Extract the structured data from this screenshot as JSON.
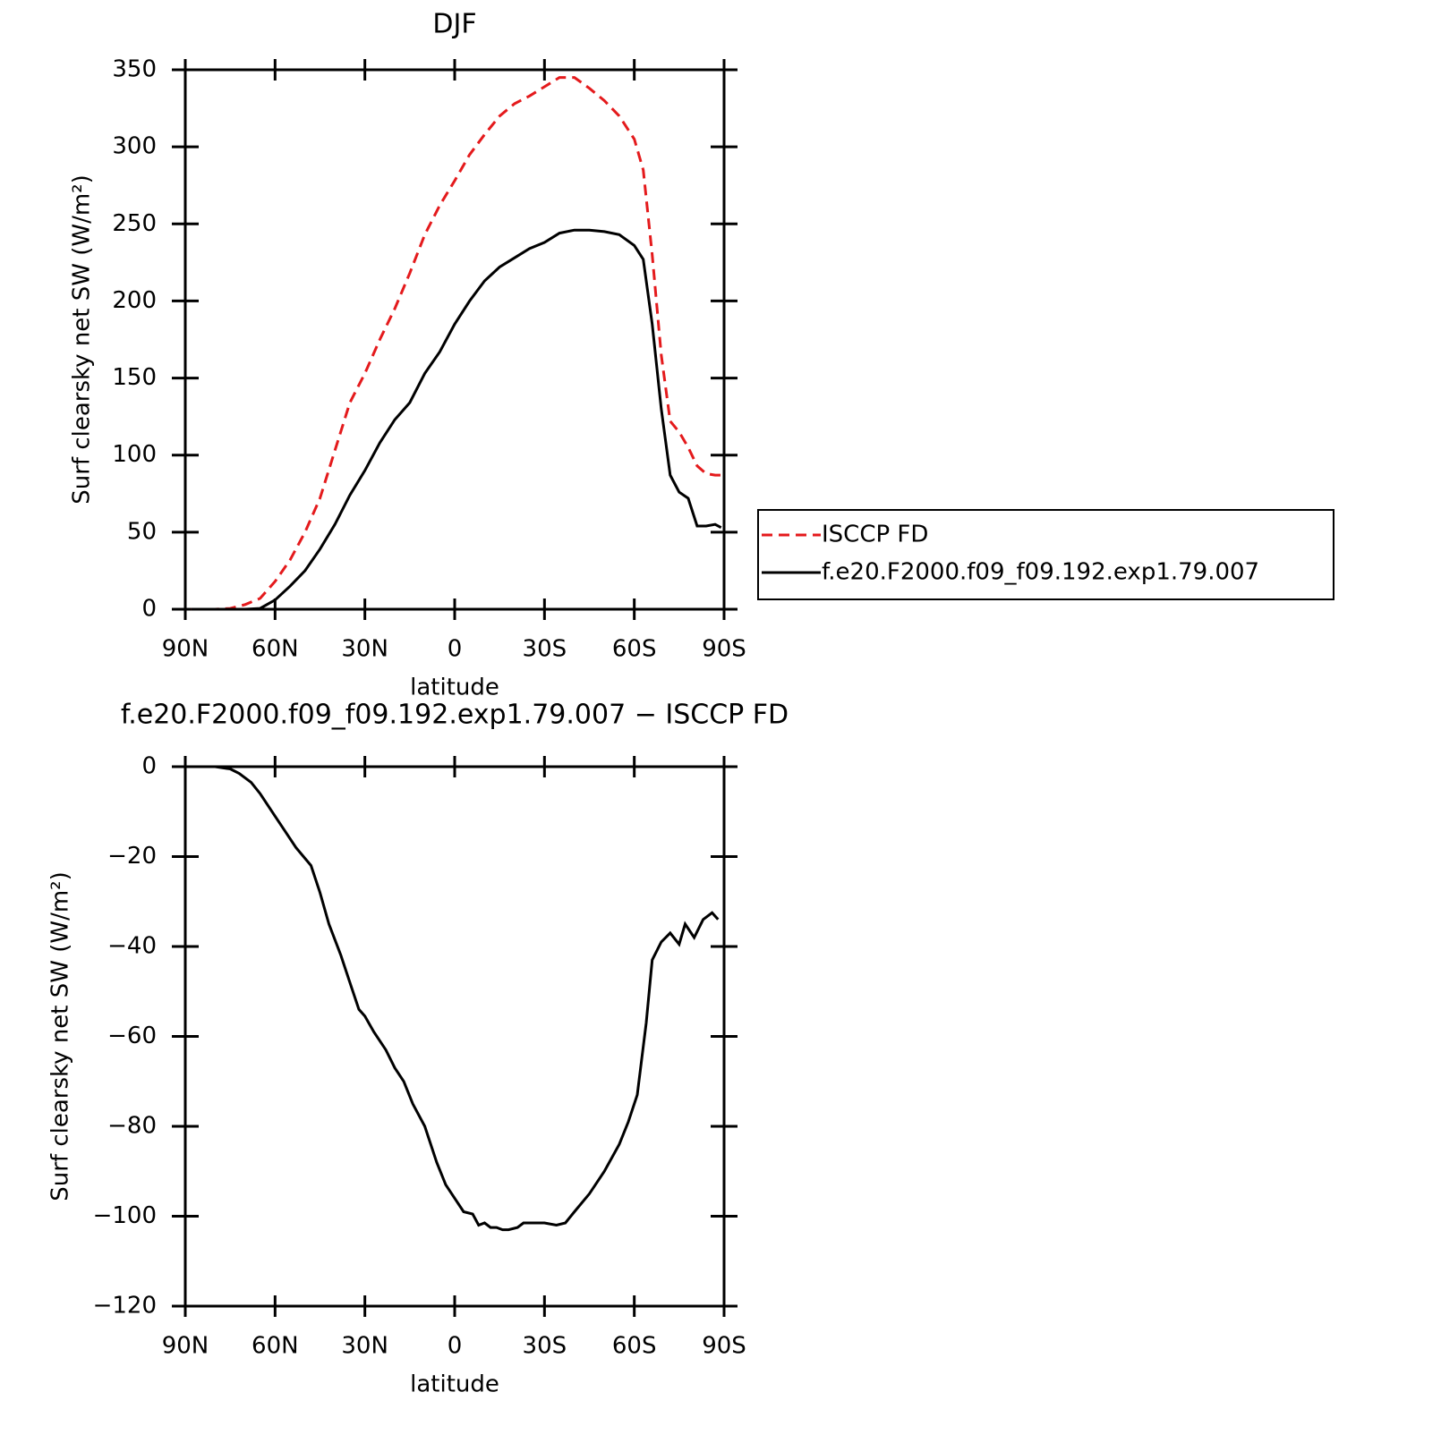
{
  "chart_data": [
    {
      "type": "line",
      "title": "DJF",
      "xlabel": "latitude",
      "ylabel": "Surf clearsky net SW (W/m²)",
      "x": [
        88,
        80,
        75,
        70,
        65,
        60,
        55,
        50,
        45,
        40,
        35,
        30,
        25,
        20,
        15,
        10,
        5,
        0,
        -5,
        -10,
        -15,
        -20,
        -25,
        -30,
        -35,
        -40,
        -45,
        -50,
        -55,
        -60,
        -63,
        -66,
        -69,
        -72,
        -75,
        -78,
        -81,
        -84,
        -87,
        -89
      ],
      "series": [
        {
          "name": "ISCCP FD",
          "color": "#e41a1c",
          "dashed": true,
          "values": [
            0,
            0,
            0.5,
            3,
            7,
            18,
            32,
            50,
            72,
            103,
            134,
            153,
            175,
            195,
            218,
            243,
            262,
            278,
            295,
            308,
            320,
            328,
            333,
            339,
            345,
            345,
            338,
            330,
            320,
            305,
            285,
            230,
            165,
            122,
            115,
            105,
            93,
            88,
            87,
            87
          ]
        },
        {
          "name": "f.e20.F2000.f09_f09.192.exp1.79.007",
          "color": "#000000",
          "dashed": false,
          "values": [
            0,
            0,
            0,
            0,
            0.5,
            6,
            15,
            25,
            39,
            55,
            74,
            90,
            108,
            123,
            134,
            153,
            167,
            185,
            200,
            213,
            222,
            228,
            234,
            238,
            244,
            246,
            246,
            245,
            243,
            236,
            227,
            185,
            130,
            87,
            76,
            72,
            54,
            54,
            55,
            53
          ]
        }
      ],
      "xlim": [
        90,
        -90
      ],
      "xticks": [
        {
          "value": 90,
          "label": "90N"
        },
        {
          "value": 60,
          "label": "60N"
        },
        {
          "value": 30,
          "label": "30N"
        },
        0,
        {
          "value": -30,
          "label": "30S"
        },
        {
          "value": -60,
          "label": "60S"
        },
        {
          "value": -90,
          "label": "90S"
        }
      ],
      "ylim": [
        0,
        350
      ],
      "yticks": [
        0,
        50,
        100,
        150,
        200,
        250,
        300,
        350
      ],
      "legend": "right"
    },
    {
      "type": "line",
      "title": "f.e20.F2000.f09_f09.192.exp1.79.007 − ISCCP FD",
      "xlabel": "latitude",
      "ylabel": "Surf clearsky net SW (W/m²)",
      "x": [
        88,
        80,
        75,
        72,
        68,
        65,
        60,
        57,
        53,
        48,
        45,
        42,
        38,
        35,
        32,
        30,
        27,
        23,
        20,
        17,
        14,
        10,
        6,
        3,
        0,
        -3,
        -6,
        -8,
        -10,
        -12,
        -14,
        -16,
        -18,
        -21,
        -23,
        -26,
        -30,
        -34,
        -37,
        -40,
        -45,
        -50,
        -55,
        -58,
        -61,
        -64,
        -66,
        -69,
        -72,
        -75,
        -77,
        -80,
        -83,
        -86,
        -88
      ],
      "series": [
        {
          "name": "f.e20.F2000.f09_f09.192.exp1.79.007 − ISCCP FD",
          "color": "#000000",
          "dashed": false,
          "values": [
            0,
            0,
            -0.5,
            -1.5,
            -3.5,
            -6,
            -11,
            -14,
            -18,
            -22,
            -28,
            -35,
            -42,
            -48,
            -54,
            -55.5,
            -59,
            -63,
            -67,
            -70,
            -75,
            -80,
            -88,
            -93,
            -96,
            -99,
            -99.5,
            -102,
            -101.5,
            -102.5,
            -102.5,
            -103,
            -103,
            -102.5,
            -101.5,
            -101.5,
            -101.5,
            -102,
            -101.5,
            -99,
            -95,
            -90,
            -84,
            -79,
            -73,
            -57,
            -43,
            -39,
            -37,
            -39.5,
            -35,
            -38,
            -34,
            -32.5,
            -34
          ]
        }
      ],
      "xlim": [
        90,
        -90
      ],
      "xticks": [
        {
          "value": 90,
          "label": "90N"
        },
        {
          "value": 60,
          "label": "60N"
        },
        {
          "value": 30,
          "label": "30N"
        },
        0,
        {
          "value": -30,
          "label": "30S"
        },
        {
          "value": -60,
          "label": "60S"
        },
        {
          "value": -90,
          "label": "90S"
        }
      ],
      "ylim": [
        -120,
        0
      ],
      "yticks": [
        {
          "value": -120,
          "label": "−120"
        },
        {
          "value": -100,
          "label": "−100"
        },
        {
          "value": -80,
          "label": "−80"
        },
        {
          "value": -60,
          "label": "−60"
        },
        {
          "value": -40,
          "label": "−40"
        },
        {
          "value": -20,
          "label": "−20"
        },
        0
      ]
    }
  ]
}
